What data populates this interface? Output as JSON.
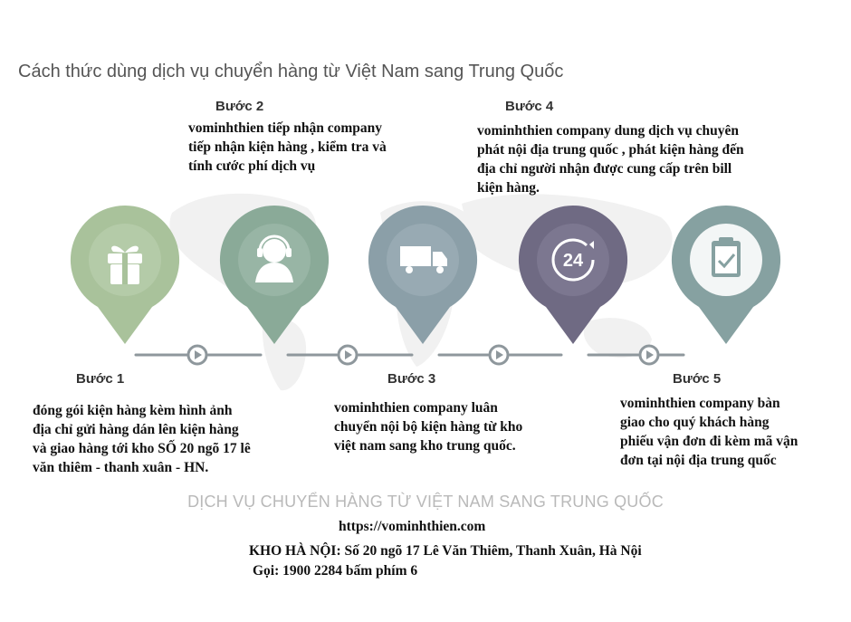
{
  "title": "Cách thức dùng dịch vụ chuyển hàng từ Việt Nam sang Trung Quốc",
  "colors": {
    "step1": "#a9c29b",
    "step2": "#8aaa98",
    "step3": "#8b9fa8",
    "step4": "#6f6a83",
    "step5": "#86a1a1",
    "connector": "#8e979c"
  },
  "steps": [
    {
      "label": "Bước 1",
      "icon": "gift-icon",
      "description": [
        "đóng gói kiện hàng kèm hình ảnh",
        "địa chỉ gửi hàng  dán lên kiện hàng",
        "và giao hàng tới  kho SỐ 20 ngõ 17 lê",
        "văn thiêm - thanh xuân - HN."
      ]
    },
    {
      "label": "Bước 2",
      "icon": "headset-agent-icon",
      "description": [
        "vominhthien tiếp nhận company",
        "tiếp nhận kiện hàng , kiểm tra và",
        "tính cước phí dịch vụ"
      ]
    },
    {
      "label": "Bước 3",
      "icon": "truck-icon",
      "description": [
        "vominhthien company luân",
        "chuyển nội bộ kiện hàng từ kho",
        "việt nam sang kho trung quốc."
      ]
    },
    {
      "label": "Bước 4",
      "icon": "24-hours-icon",
      "icon_text": "24",
      "description": [
        "vominhthien company dung dịch vụ chuyên",
        "phát nội địa trung quốc , phát kiện hàng đến",
        "địa chỉ người nhận được cung cấp trên bill",
        "kiện hàng."
      ]
    },
    {
      "label": "Bước 5",
      "icon": "clipboard-check-icon",
      "description": [
        "vominhthien company bàn",
        "giao cho quý khách hàng",
        "phiếu vận đơn đi kèm mã vận",
        "đơn tại nội địa trung quốc"
      ]
    }
  ],
  "footer": {
    "service_title": "DỊCH VỤ CHUYỂN HÀNG TỪ VIỆT NAM SANG TRUNG QUỐC",
    "website": "https://vominhthien.com",
    "warehouse": "KHO HÀ NỘI: Số 20 ngõ 17 Lê Văn Thiêm, Thanh Xuân, Hà Nội",
    "phone": "Gọi: 1900 2284 bấm phím 6"
  }
}
